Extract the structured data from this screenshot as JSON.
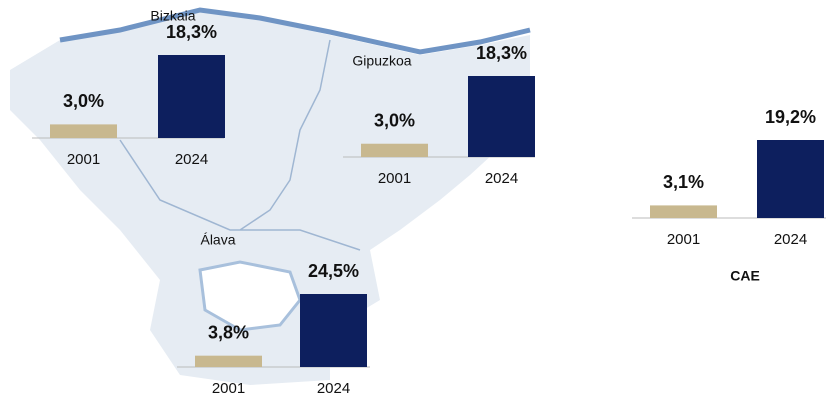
{
  "chart_data": [
    {
      "type": "bar",
      "title": "Bizkaia",
      "categories": [
        "2001",
        "2024"
      ],
      "values": [
        3.0,
        18.3
      ],
      "value_labels": [
        "3,0%",
        "18,3%"
      ],
      "colors": [
        "#c8b88f",
        "#0d1f5e"
      ]
    },
    {
      "type": "bar",
      "title": "Gipuzkoa",
      "categories": [
        "2001",
        "2024"
      ],
      "values": [
        3.0,
        18.3
      ],
      "value_labels": [
        "3,0%",
        "18,3%"
      ],
      "colors": [
        "#c8b88f",
        "#0d1f5e"
      ]
    },
    {
      "type": "bar",
      "title": "Álava",
      "categories": [
        "2001",
        "2024"
      ],
      "values": [
        3.8,
        24.5
      ],
      "value_labels": [
        "3,8%",
        "24,5%"
      ],
      "colors": [
        "#c8b88f",
        "#0d1f5e"
      ]
    },
    {
      "type": "bar",
      "title": "CAE",
      "categories": [
        "2001",
        "2024"
      ],
      "values": [
        3.1,
        19.2
      ],
      "value_labels": [
        "3,1%",
        "19,2%"
      ],
      "colors": [
        "#c8b88f",
        "#0d1f5e"
      ]
    }
  ]
}
